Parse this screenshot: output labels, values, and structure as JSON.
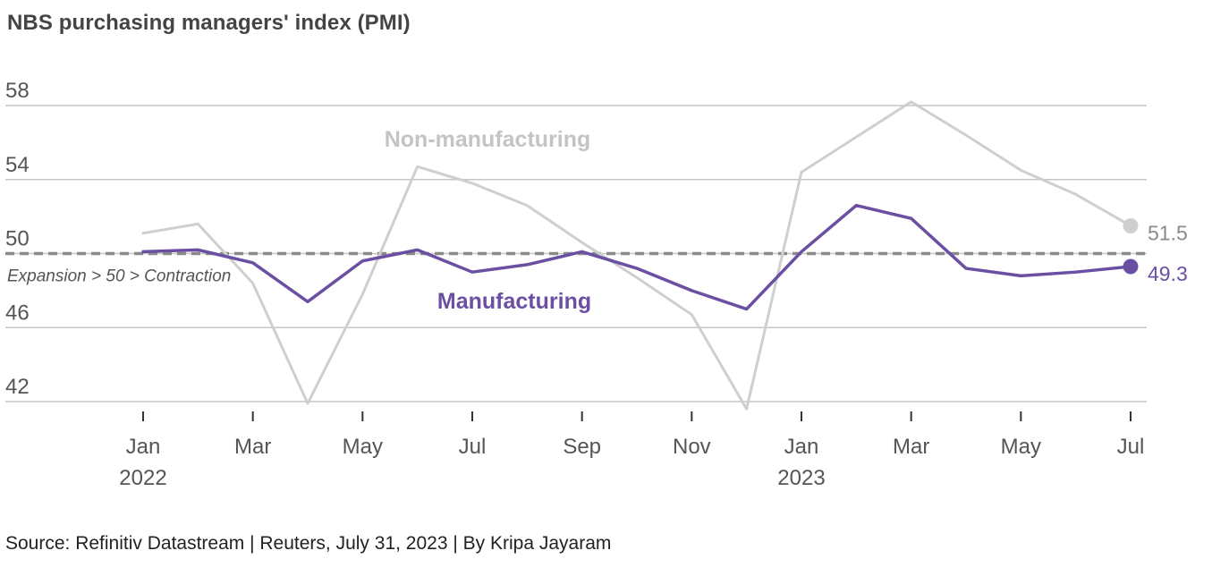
{
  "colors": {
    "manufacturing": "#6b4fa2",
    "non_manufacturing": "#cfcfcf",
    "non_manufacturing_label": "#c4c4c4",
    "gridline": "#c6c6c6",
    "reference_line": "#8a8a8a",
    "axis_tick": "#333333"
  },
  "chart_data": {
    "type": "line",
    "title": "NBS purchasing managers' index (PMI)",
    "source": "Source: Refinitiv Datastream | Reuters, July 31, 2023 | By Kripa Jayaram",
    "xlabel": "",
    "ylabel": "",
    "ylim": [
      42,
      58
    ],
    "yticks": [
      42,
      46,
      "50",
      54,
      58
    ],
    "ytick_labels": [
      "42",
      "46",
      "50",
      "54",
      "58"
    ],
    "x": [
      "2022-01",
      "2022-02",
      "2022-03",
      "2022-04",
      "2022-05",
      "2022-06",
      "2022-07",
      "2022-08",
      "2022-09",
      "2022-10",
      "2022-11",
      "2022-12",
      "2023-01",
      "2023-02",
      "2023-03",
      "2023-04",
      "2023-05",
      "2023-06",
      "2023-07"
    ],
    "xtick_labels": [
      {
        "month": "Jan",
        "year": "2022",
        "index": 0
      },
      {
        "month": "Mar",
        "year": "",
        "index": 2
      },
      {
        "month": "May",
        "year": "",
        "index": 4
      },
      {
        "month": "Jul",
        "year": "",
        "index": 6
      },
      {
        "month": "Sep",
        "year": "",
        "index": 8
      },
      {
        "month": "Nov",
        "year": "",
        "index": 10
      },
      {
        "month": "Jan",
        "year": "2023",
        "index": 12
      },
      {
        "month": "Mar",
        "year": "",
        "index": 14
      },
      {
        "month": "May",
        "year": "",
        "index": 16
      },
      {
        "month": "Jul",
        "year": "",
        "index": 18
      }
    ],
    "reference_line": {
      "value": 50,
      "label": "Expansion > 50 > Contraction"
    },
    "series": [
      {
        "name": "Non-manufacturing",
        "values": [
          51.1,
          51.6,
          48.4,
          41.9,
          47.8,
          54.7,
          53.8,
          52.6,
          50.6,
          48.7,
          46.7,
          41.6,
          54.4,
          56.3,
          58.2,
          56.4,
          54.5,
          53.2,
          51.5
        ],
        "end_label": "51.5"
      },
      {
        "name": "Manufacturing",
        "values": [
          50.1,
          50.2,
          49.5,
          47.4,
          49.6,
          50.2,
          49.0,
          49.4,
          50.1,
          49.2,
          48.0,
          47.0,
          50.1,
          52.6,
          51.9,
          49.2,
          48.8,
          49.0,
          49.3
        ],
        "end_label": "49.3"
      }
    ]
  }
}
